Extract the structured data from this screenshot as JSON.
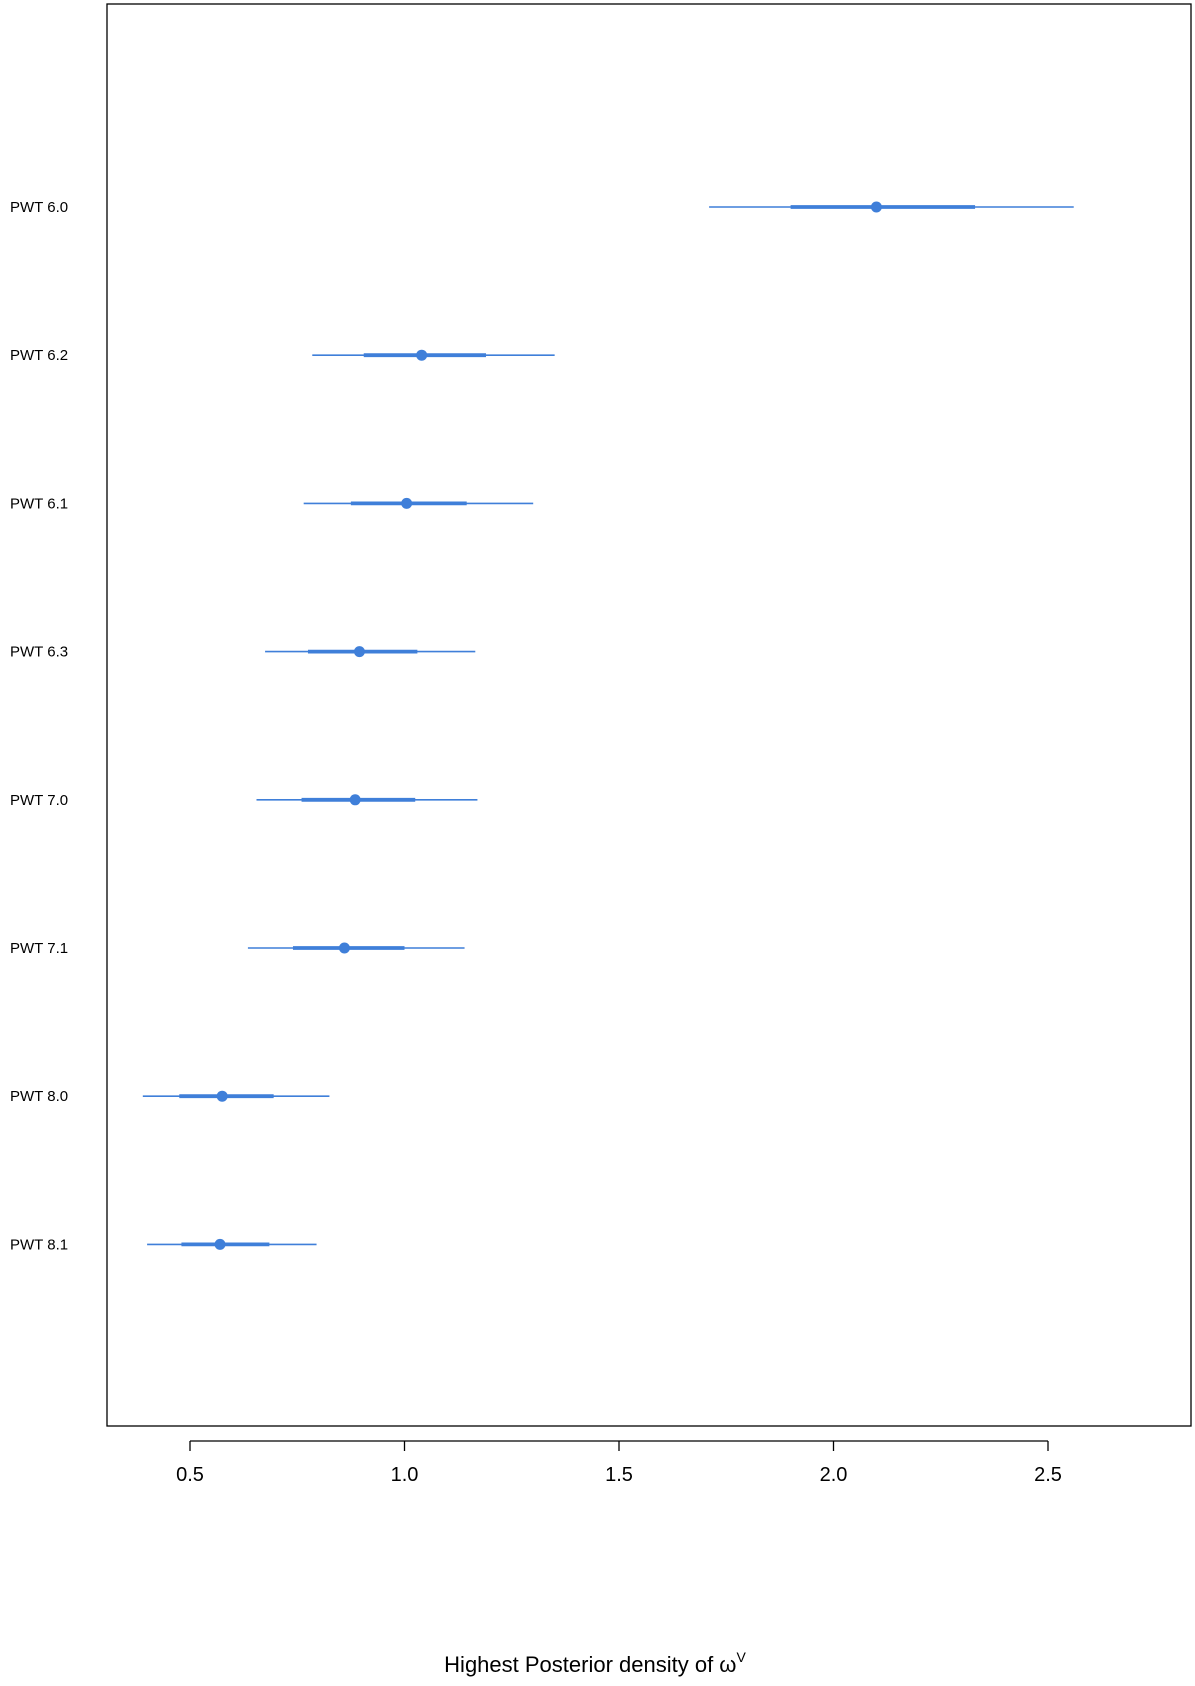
{
  "chart_data": {
    "type": "forest",
    "xlabel": "Highest Posterior density of ω",
    "xlabel_superscript": "V",
    "xlim": [
      0.3,
      2.65
    ],
    "xticks": [
      "0.5",
      "1.0",
      "1.5",
      "2.0",
      "2.5"
    ],
    "color": "#3f7fd9",
    "grid": false,
    "rows": [
      {
        "label": "PWT 6.0",
        "point": 2.1,
        "inner": [
          1.9,
          2.33
        ],
        "outer": [
          1.71,
          2.56
        ]
      },
      {
        "label": "PWT 6.2",
        "point": 1.04,
        "inner": [
          0.905,
          1.19
        ],
        "outer": [
          0.785,
          1.35
        ]
      },
      {
        "label": "PWT 6.1",
        "point": 1.005,
        "inner": [
          0.875,
          1.145
        ],
        "outer": [
          0.765,
          1.3
        ]
      },
      {
        "label": "PWT 6.3",
        "point": 0.895,
        "inner": [
          0.775,
          1.03
        ],
        "outer": [
          0.675,
          1.165
        ]
      },
      {
        "label": "PWT 7.0",
        "point": 0.885,
        "inner": [
          0.76,
          1.025
        ],
        "outer": [
          0.655,
          1.17
        ]
      },
      {
        "label": "PWT 7.1",
        "point": 0.86,
        "inner": [
          0.74,
          1.0
        ],
        "outer": [
          0.635,
          1.14
        ]
      },
      {
        "label": "PWT 8.0",
        "point": 0.575,
        "inner": [
          0.475,
          0.695
        ],
        "outer": [
          0.39,
          0.825
        ]
      },
      {
        "label": "PWT 8.1",
        "point": 0.57,
        "inner": [
          0.48,
          0.685
        ],
        "outer": [
          0.4,
          0.795
        ]
      }
    ]
  }
}
